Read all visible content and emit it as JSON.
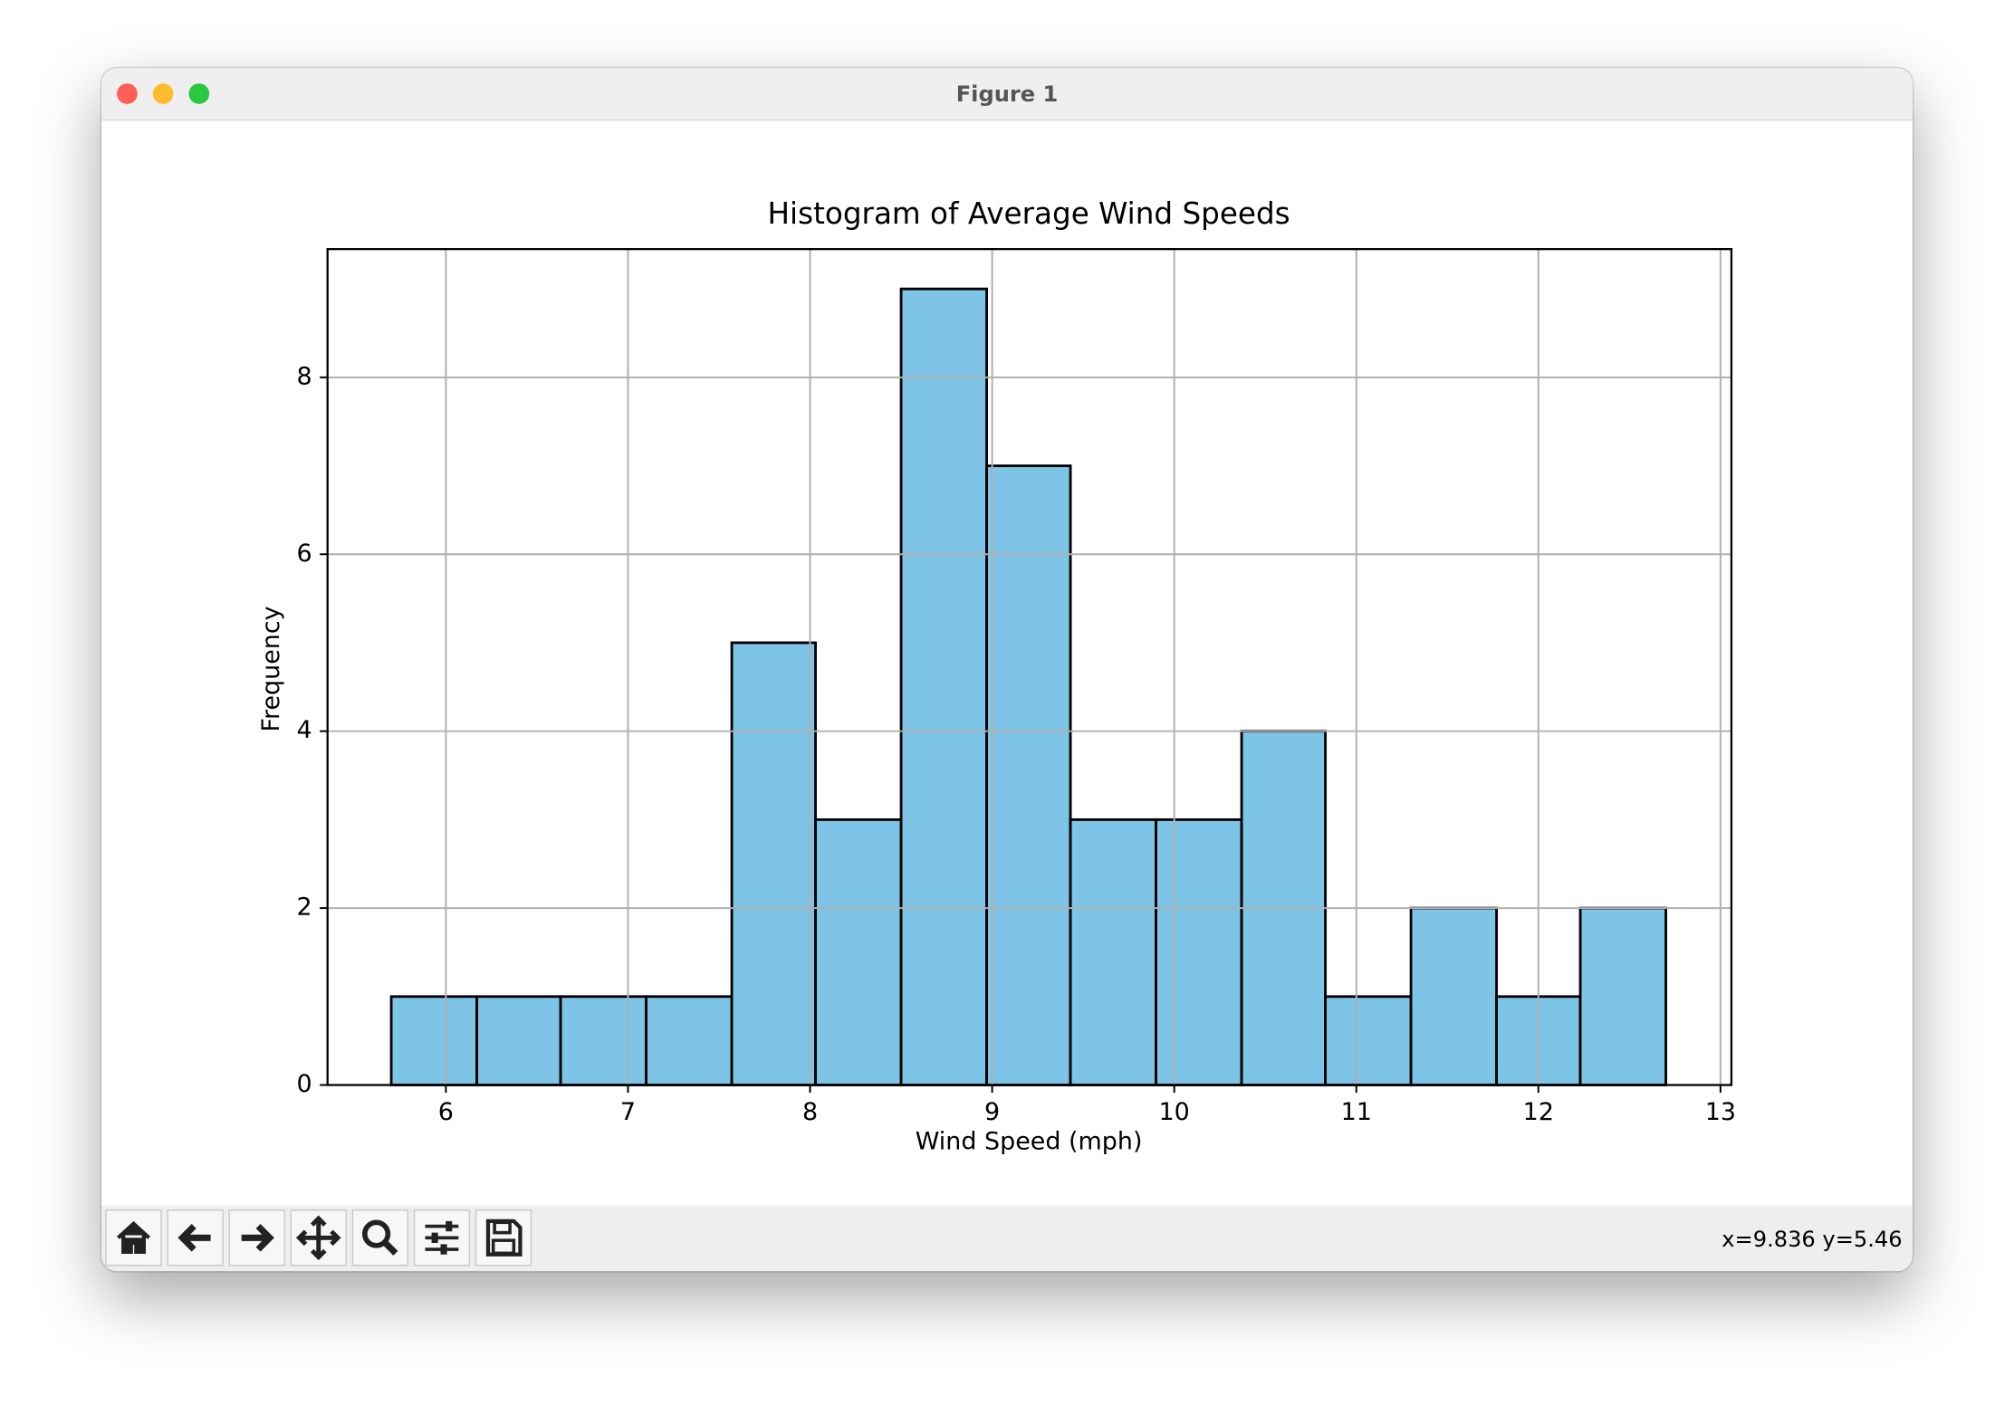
{
  "window": {
    "title": "Figure 1",
    "status": "x=9.836 y=5.46"
  },
  "chart_data": {
    "type": "histogram",
    "title": "Histogram of Average Wind Speeds",
    "xlabel": "Wind Speed (mph)",
    "ylabel": "Frequency",
    "bins": [
      5.7,
      6.17,
      6.63,
      7.1,
      7.57,
      8.03,
      8.5,
      8.97,
      9.43,
      9.9,
      10.37,
      10.83,
      11.3,
      11.77,
      12.23,
      12.7
    ],
    "values": [
      1,
      1,
      1,
      1,
      5,
      3,
      9,
      7,
      3,
      3,
      4,
      1,
      2,
      1,
      2
    ],
    "color": "#7ec4e6",
    "edgecolor": "#000000",
    "xlim": [
      5.35,
      13.06
    ],
    "ylim": [
      0,
      9.45
    ],
    "xticks": [
      6,
      7,
      8,
      9,
      10,
      11,
      12,
      13
    ],
    "yticks": [
      0,
      2,
      4,
      6,
      8
    ],
    "grid": true
  }
}
